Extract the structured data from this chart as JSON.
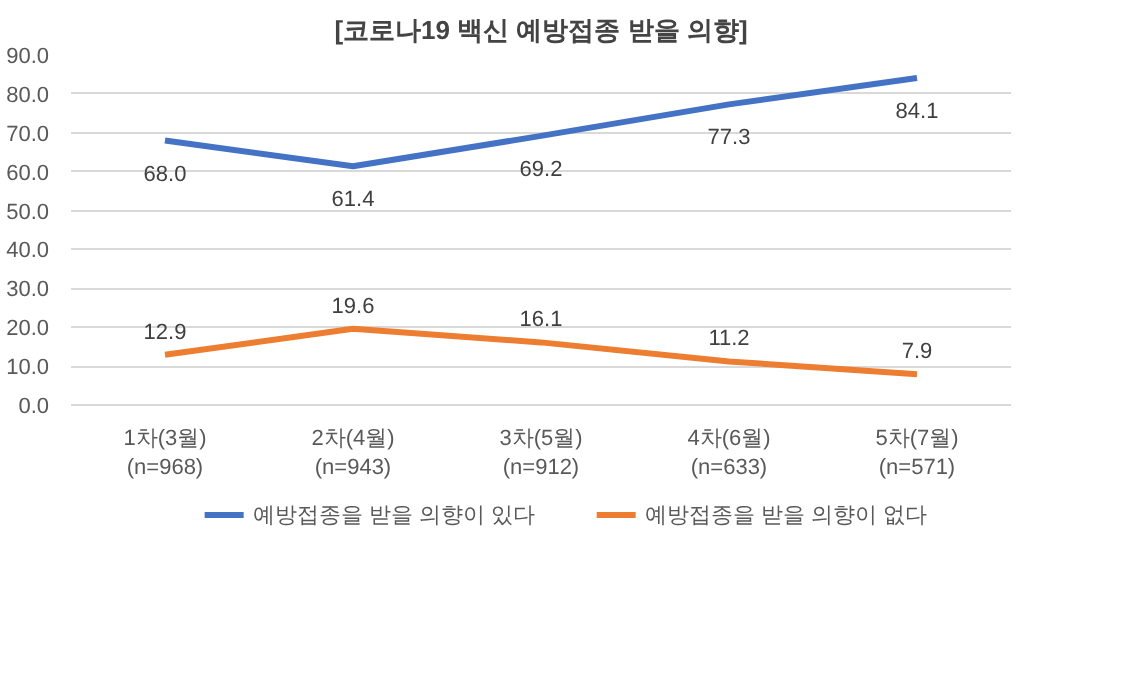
{
  "chart_data": {
    "type": "line",
    "title": "[코로나19 백신 예방접종 받을 의향]",
    "categories": [
      "1차(3월)\n(n=968)",
      "2차(4월)\n(n=943)",
      "3차(5월)\n(n=912)",
      "4차(6월)\n(n=633)",
      "5차(7월)\n(n=571)"
    ],
    "series": [
      {
        "name": "예방접종을 받을 의향이 있다",
        "color": "#4472c4",
        "values": [
          68.0,
          61.4,
          69.2,
          77.3,
          84.1
        ],
        "value_labels": [
          "68.0",
          "61.4",
          "69.2",
          "77.3",
          "84.1"
        ]
      },
      {
        "name": "예방접종을 받을 의향이 없다",
        "color": "#ed7d31",
        "values": [
          12.9,
          19.6,
          16.1,
          11.2,
          7.9
        ],
        "value_labels": [
          "12.9",
          "19.6",
          "16.1",
          "11.2",
          "7.9"
        ]
      }
    ],
    "ylim": [
      0,
      90
    ],
    "yticks": [
      {
        "value": 0,
        "label": "0.0"
      },
      {
        "value": 10,
        "label": "10.0"
      },
      {
        "value": 20,
        "label": "20.0"
      },
      {
        "value": 30,
        "label": "30.0"
      },
      {
        "value": 40,
        "label": "40.0"
      },
      {
        "value": 50,
        "label": "50.0"
      },
      {
        "value": 60,
        "label": "60.0"
      },
      {
        "value": 70,
        "label": "70.0"
      },
      {
        "value": 80,
        "label": "80.0"
      },
      {
        "value": 90,
        "label": "90.0"
      }
    ],
    "grid": "y",
    "legend": "bottom",
    "marker": "none",
    "line_style": "solid"
  }
}
